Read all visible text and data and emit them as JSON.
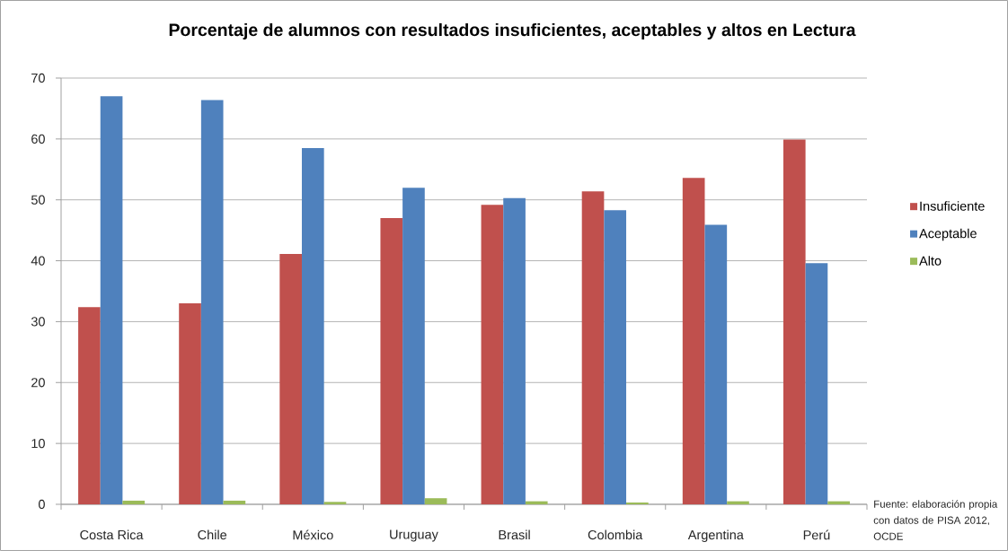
{
  "chart_data": {
    "type": "bar",
    "title": "Porcentaje de alumnos con resultados insuficientes, aceptables y altos en Lectura",
    "categories": [
      "Costa Rica",
      "Chile",
      "México",
      "Uruguay",
      "Brasil",
      "Colombia",
      "Argentina",
      "Perú"
    ],
    "series": [
      {
        "name": "Insuficiente",
        "color": "#c0504d",
        "values": [
          32.4,
          33.0,
          41.1,
          47.0,
          49.2,
          51.4,
          53.6,
          59.9
        ]
      },
      {
        "name": "Aceptable",
        "color": "#4f81bd",
        "values": [
          67.0,
          66.4,
          58.5,
          52.0,
          50.3,
          48.3,
          45.9,
          39.6
        ]
      },
      {
        "name": "Alto",
        "color": "#9bbb59",
        "values": [
          0.6,
          0.6,
          0.4,
          1.0,
          0.5,
          0.3,
          0.5,
          0.5
        ]
      }
    ],
    "ylim": [
      0,
      70
    ],
    "yticks": [
      0,
      10,
      20,
      30,
      40,
      50,
      60,
      70
    ],
    "grid": "y",
    "legend": "right",
    "annotations": [
      "Fuente: elaboración propia con datos de PISA 2012, OCDE"
    ]
  }
}
